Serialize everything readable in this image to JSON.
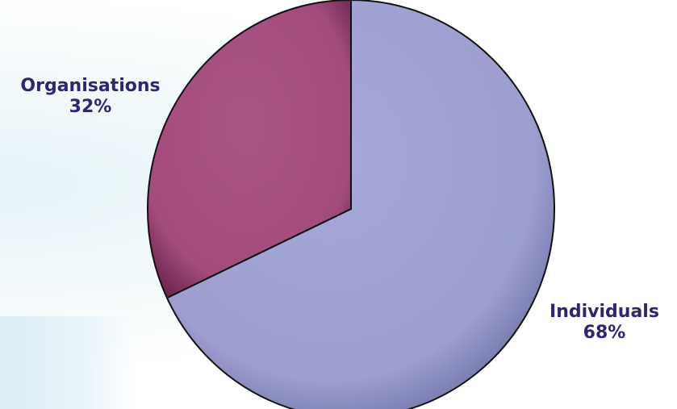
{
  "chart_data": {
    "type": "pie",
    "slices": [
      {
        "name": "Individuals",
        "value": 68,
        "label": "Individuals",
        "percent_label": "68%",
        "color": "#9c9fcf"
      },
      {
        "name": "Organisations",
        "value": 32,
        "label": "Organisations",
        "percent_label": "32%",
        "color": "#a24b7c"
      }
    ],
    "legend": "none"
  }
}
